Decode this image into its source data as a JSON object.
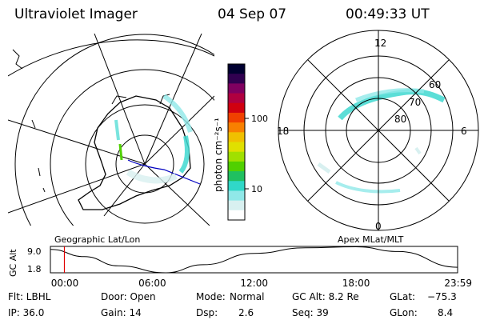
{
  "header": {
    "instrument": "Ultraviolet Imager",
    "date": "04 Sep 07",
    "time": "00:49:33 UT"
  },
  "colorbar": {
    "label": "photon cm⁻²s⁻¹",
    "ticks": [
      "100",
      "10"
    ],
    "colors": [
      "#000030",
      "#300050",
      "#800060",
      "#b00040",
      "#d00010",
      "#f04000",
      "#f88000",
      "#f0c000",
      "#e0e000",
      "#a0e000",
      "#50d000",
      "#20c060",
      "#30d8c8",
      "#90e8e8",
      "#d8f0f0",
      "#ffffff"
    ]
  },
  "left_map": {
    "label": "Geographic Lat/Lon"
  },
  "right_map": {
    "label": "Apex MLat/MLT",
    "mlt_labels": [
      "12",
      "18",
      "6",
      "0"
    ],
    "mlat_labels": [
      "60",
      "70",
      "80"
    ]
  },
  "accent_colors": {
    "aurora": "#40d8d0",
    "marker": "#e00000",
    "meridian": "#0000c0"
  },
  "chart_data": {
    "type": "line",
    "ylabel": "GC Alt",
    "yticks": [
      "9.0",
      "1.8"
    ],
    "ylim": [
      1.8,
      9.0
    ],
    "xlim_hours": [
      0,
      23.98
    ],
    "x_tick_labels": [
      "00:00",
      "06:00",
      "12:00",
      "18:00",
      "23:59"
    ],
    "x_hours": [
      0,
      2,
      4,
      6.8,
      9,
      12,
      15,
      18,
      20.5,
      23.98
    ],
    "y_alt": [
      8.2,
      6.2,
      3.7,
      1.8,
      4.0,
      7.1,
      8.6,
      8.9,
      7.6,
      3.3
    ],
    "current_time_hours": 0.826
  },
  "info": {
    "row1": {
      "filter": "Flt: LBHL",
      "door": "Door: Open",
      "mode_label": "Mode:",
      "mode_value": "Normal",
      "gcalt": "GC Alt: 8.2 Re",
      "glat_label": "GLat:",
      "glat_value": "−75.3"
    },
    "row2": {
      "ip": "IP: 36.0",
      "gain": "Gain: 14",
      "dsp_label": "Dsp:",
      "dsp_value": "2.6",
      "seq": "Seq: 39",
      "glon_label": "GLon:",
      "glon_value": "8.4"
    }
  }
}
